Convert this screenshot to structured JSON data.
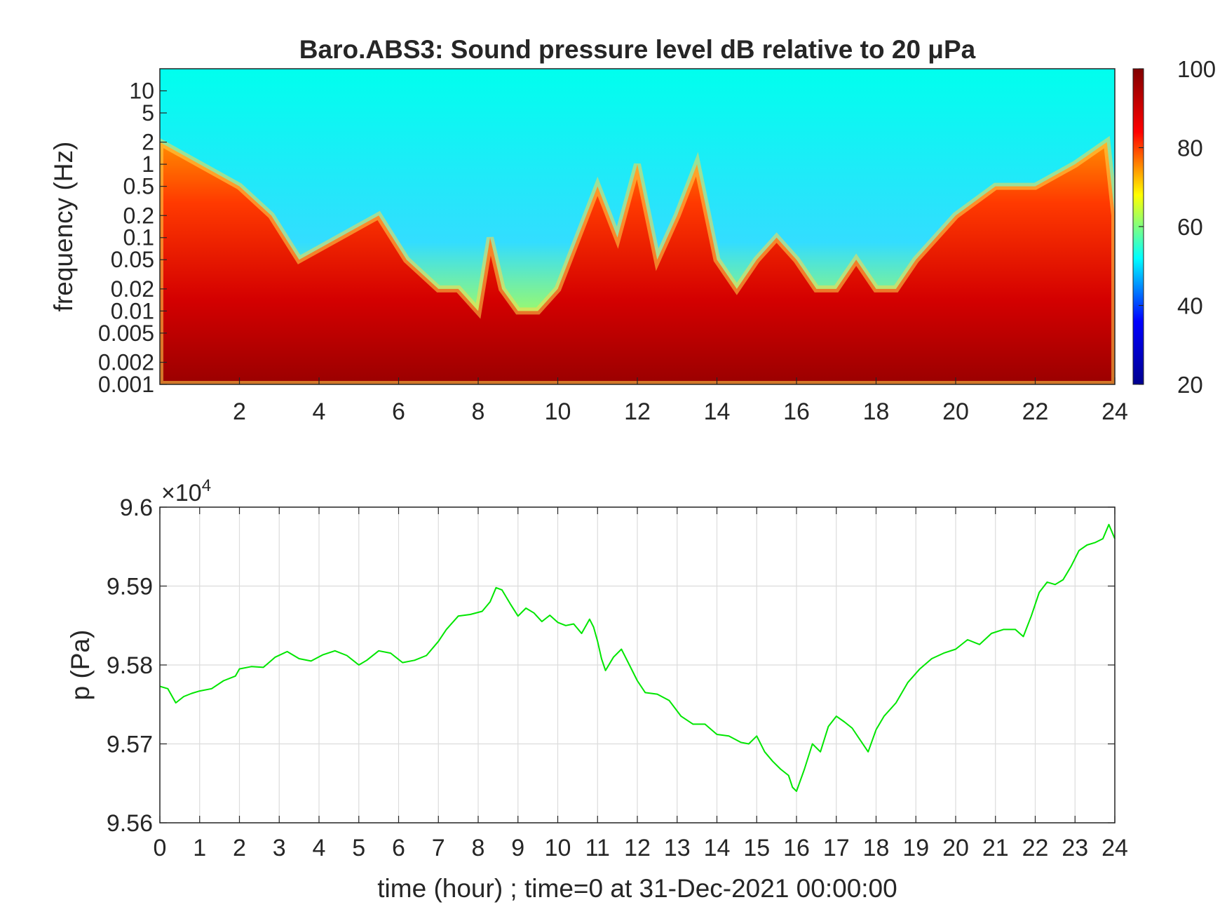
{
  "chart_data": [
    {
      "type": "heatmap",
      "title": "Baro.ABS3: Sound pressure level dB relative to 20 μPa",
      "xlabel": "",
      "ylabel": "frequency (Hz)",
      "xlim": [
        0,
        24
      ],
      "xticks": [
        2,
        4,
        6,
        8,
        10,
        12,
        14,
        16,
        18,
        20,
        22,
        24
      ],
      "xtick_labels": [
        "2",
        "4",
        "6",
        "8",
        "10",
        "12",
        "14",
        "16",
        "18",
        "20",
        "22",
        "24"
      ],
      "y_scale": "log",
      "ylim": [
        0.001,
        20
      ],
      "yticks": [
        10,
        5,
        2,
        1,
        0.5,
        0.2,
        0.1,
        0.05,
        0.02,
        0.01,
        0.005,
        0.002,
        0.001
      ],
      "ytick_labels": [
        "10",
        "5",
        "2",
        "1",
        "0.5",
        "0.2",
        "0.1",
        "0.05",
        "0.02",
        "0.01",
        "0.005",
        "0.002",
        "0.001"
      ],
      "colormap": "jet",
      "colorbar": {
        "limits": [
          20,
          100
        ],
        "ticks": [
          100,
          80,
          60,
          40,
          20
        ],
        "tick_labels": [
          "100",
          "80",
          "60",
          "40",
          "20"
        ],
        "colors": [
          "#00008f",
          "#0000ff",
          "#00ffff",
          "#ffff00",
          "#ff0000",
          "#800000"
        ]
      },
      "activity_profile": {
        "hours": [
          0,
          1,
          2,
          2.8,
          3.5,
          4.5,
          5.5,
          6.2,
          7,
          7.5,
          8,
          8.3,
          8.6,
          9,
          9.5,
          10,
          10.5,
          11,
          11.5,
          12,
          12.5,
          13,
          13.5,
          14,
          14.5,
          15,
          15.5,
          16,
          16.5,
          17,
          17.5,
          18,
          18.5,
          19,
          19.5,
          20,
          21,
          22,
          23,
          23.8,
          24
        ],
        "upper_edge_hz": [
          2,
          1,
          0.5,
          0.2,
          0.05,
          0.1,
          0.2,
          0.05,
          0.02,
          0.02,
          0.01,
          0.1,
          0.02,
          0.01,
          0.01,
          0.02,
          0.1,
          0.5,
          0.1,
          1,
          0.05,
          0.2,
          1,
          0.05,
          0.02,
          0.05,
          0.1,
          0.05,
          0.02,
          0.02,
          0.05,
          0.02,
          0.02,
          0.05,
          0.1,
          0.2,
          0.5,
          0.5,
          1,
          2,
          0.2
        ]
      }
    },
    {
      "type": "line",
      "title": "",
      "xlabel": "time (hour) ; time=0 at 31-Dec-2021 00:00:00",
      "ylabel": "p (Pa)",
      "y_exponent_label": "×10",
      "y_exponent": "4",
      "xlim": [
        0,
        24
      ],
      "ylim": [
        95600,
        96000
      ],
      "xticks": [
        0,
        1,
        2,
        3,
        4,
        5,
        6,
        7,
        8,
        9,
        10,
        11,
        12,
        13,
        14,
        15,
        16,
        17,
        18,
        19,
        20,
        21,
        22,
        23,
        24
      ],
      "xtick_labels": [
        "0",
        "1",
        "2",
        "3",
        "4",
        "5",
        "6",
        "7",
        "8",
        "9",
        "10",
        "11",
        "12",
        "13",
        "14",
        "15",
        "16",
        "17",
        "18",
        "19",
        "20",
        "21",
        "22",
        "23",
        "24"
      ],
      "yticks": [
        96000,
        95900,
        95800,
        95700,
        95600
      ],
      "ytick_labels": [
        "9.6",
        "9.59",
        "9.58",
        "9.57",
        "9.56"
      ],
      "grid": true,
      "series": [
        {
          "color": "#00e600",
          "x": [
            0,
            0.2,
            0.4,
            0.6,
            0.8,
            1.0,
            1.3,
            1.6,
            1.9,
            2.0,
            2.3,
            2.6,
            2.9,
            3.2,
            3.5,
            3.8,
            4.1,
            4.4,
            4.7,
            5.0,
            5.2,
            5.5,
            5.8,
            6.1,
            6.4,
            6.7,
            7.0,
            7.2,
            7.5,
            7.8,
            8.1,
            8.3,
            8.45,
            8.6,
            8.8,
            9.0,
            9.2,
            9.4,
            9.6,
            9.8,
            10.0,
            10.2,
            10.4,
            10.6,
            10.8,
            10.9,
            11.0,
            11.1,
            11.2,
            11.4,
            11.6,
            11.8,
            12.0,
            12.2,
            12.5,
            12.8,
            13.1,
            13.4,
            13.7,
            14.0,
            14.3,
            14.6,
            14.8,
            15.0,
            15.2,
            15.4,
            15.6,
            15.8,
            15.9,
            16.0,
            16.2,
            16.4,
            16.6,
            16.8,
            17.0,
            17.2,
            17.4,
            17.6,
            17.8,
            18.0,
            18.2,
            18.5,
            18.8,
            19.1,
            19.4,
            19.7,
            20.0,
            20.3,
            20.6,
            20.9,
            21.2,
            21.5,
            21.7,
            21.9,
            22.1,
            22.3,
            22.5,
            22.7,
            22.9,
            23.1,
            23.3,
            23.5,
            23.7,
            23.85,
            24.0
          ],
          "y": [
            95773,
            95770,
            95752,
            95760,
            95764,
            95767,
            95770,
            95780,
            95786,
            95795,
            95798,
            95797,
            95810,
            95817,
            95808,
            95805,
            95813,
            95818,
            95812,
            95800,
            95806,
            95818,
            95815,
            95803,
            95806,
            95812,
            95830,
            95845,
            95862,
            95864,
            95868,
            95880,
            95898,
            95895,
            95878,
            95862,
            95872,
            95866,
            95855,
            95863,
            95854,
            95850,
            95852,
            95840,
            95858,
            95848,
            95830,
            95808,
            95793,
            95810,
            95820,
            95800,
            95780,
            95765,
            95763,
            95755,
            95735,
            95725,
            95725,
            95712,
            95710,
            95702,
            95700,
            95710,
            95690,
            95678,
            95668,
            95660,
            95645,
            95640,
            95668,
            95700,
            95690,
            95722,
            95735,
            95728,
            95720,
            95705,
            95690,
            95718,
            95735,
            95752,
            95778,
            95795,
            95808,
            95815,
            95820,
            95832,
            95826,
            95840,
            95845,
            95845,
            95836,
            95862,
            95892,
            95905,
            95902,
            95908,
            95925,
            95945,
            95952,
            95955,
            95960,
            95978,
            95960
          ]
        }
      ]
    }
  ]
}
